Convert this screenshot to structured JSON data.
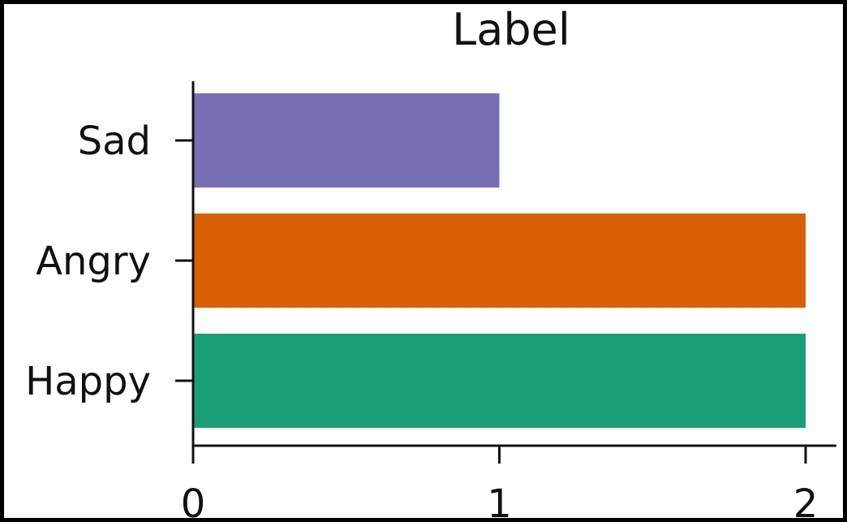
{
  "chart_data": {
    "type": "bar",
    "orientation": "horizontal",
    "title": "Label",
    "xlabel": "",
    "ylabel": "",
    "categories": [
      "Happy",
      "Angry",
      "Sad"
    ],
    "values": [
      2,
      2,
      1
    ],
    "colors": [
      "#1b9e77",
      "#d95f02",
      "#7570b3"
    ],
    "xlim": [
      0,
      2.1
    ],
    "xticks": [
      "0",
      "1",
      "2"
    ],
    "grid": false,
    "legend": "none"
  }
}
